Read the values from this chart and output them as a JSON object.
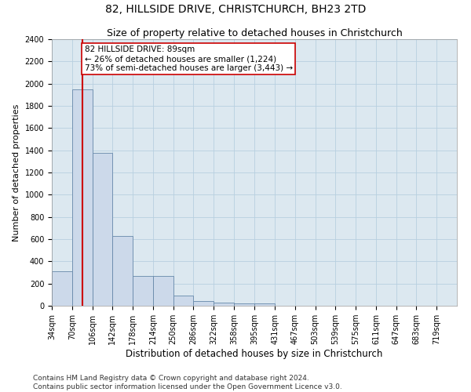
{
  "title": "82, HILLSIDE DRIVE, CHRISTCHURCH, BH23 2TD",
  "subtitle": "Size of property relative to detached houses in Christchurch",
  "xlabel": "Distribution of detached houses by size in Christchurch",
  "ylabel": "Number of detached properties",
  "bar_color": "#ccd9ea",
  "bar_edge_color": "#6688aa",
  "grid_color": "#b8cfe0",
  "background_color": "#dce8f0",
  "property_line_x": 89,
  "property_line_color": "#cc0000",
  "annotation_text": "82 HILLSIDE DRIVE: 89sqm\n← 26% of detached houses are smaller (1,224)\n73% of semi-detached houses are larger (3,443) →",
  "annotation_box_color": "#ffffff",
  "annotation_edge_color": "#cc0000",
  "bin_edges": [
    34,
    70,
    106,
    142,
    178,
    214,
    250,
    286,
    322,
    358,
    395,
    431,
    467,
    503,
    539,
    575,
    611,
    647,
    683,
    719,
    755
  ],
  "bar_heights": [
    310,
    1950,
    1380,
    625,
    265,
    265,
    90,
    45,
    30,
    20,
    20,
    0,
    0,
    0,
    0,
    0,
    0,
    0,
    0,
    0
  ],
  "ylim": [
    0,
    2400
  ],
  "yticks": [
    0,
    200,
    400,
    600,
    800,
    1000,
    1200,
    1400,
    1600,
    1800,
    2000,
    2200,
    2400
  ],
  "footer_text": "Contains HM Land Registry data © Crown copyright and database right 2024.\nContains public sector information licensed under the Open Government Licence v3.0.",
  "title_fontsize": 10,
  "subtitle_fontsize": 9,
  "xlabel_fontsize": 8.5,
  "ylabel_fontsize": 8,
  "tick_fontsize": 7,
  "footer_fontsize": 6.5,
  "annot_fontsize": 7.5
}
